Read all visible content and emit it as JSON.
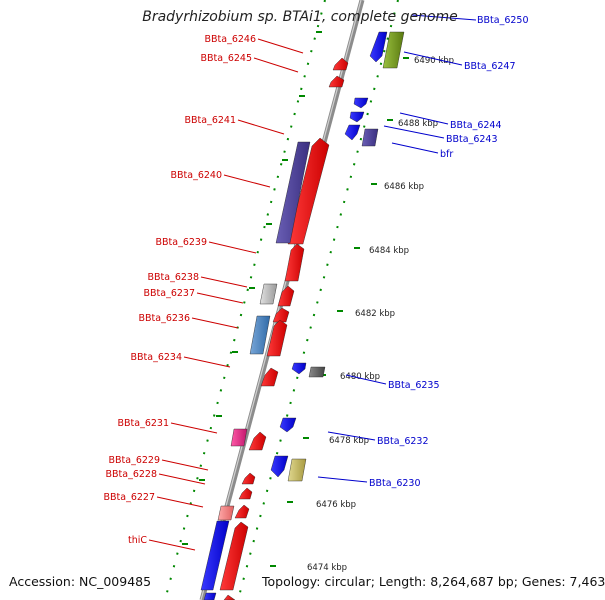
{
  "title": "Bradyrhizobium sp. BTAi1, complete genome",
  "footer": {
    "accession": "Accession: NC_009485",
    "topology": "Topology: circular; Length: 8,264,687 bp; Genes: 7,463"
  },
  "colors": {
    "forward_label": "#cc0000",
    "reverse_label": "#0000cc",
    "forward_gene": "#ff0000",
    "reverse_gene": "#0000ff",
    "tick": "#008800",
    "axis": "#8c8c8c"
  },
  "scale_ticks": [
    "6474 kbp",
    "6476 kbp",
    "6478 kbp",
    "6480 kbp",
    "6482 kbp",
    "6484 kbp",
    "6486 kbp",
    "6488 kbp",
    "6490 kbp"
  ],
  "forward_labels": [
    "BBta_6246",
    "BBta_6245",
    "BBta_6241",
    "BBta_6240",
    "BBta_6239",
    "BBta_6238",
    "BBta_6237",
    "BBta_6236",
    "BBta_6234",
    "BBta_6231",
    "BBta_6229",
    "BBta_6228",
    "BBta_6227",
    "thiC"
  ],
  "reverse_labels": [
    "BBta_6250",
    "BBta_6247",
    "BBta_6244",
    "BBta_6243",
    "bfr",
    "BBta_6235",
    "BBta_6232",
    "BBta_6230"
  ]
}
